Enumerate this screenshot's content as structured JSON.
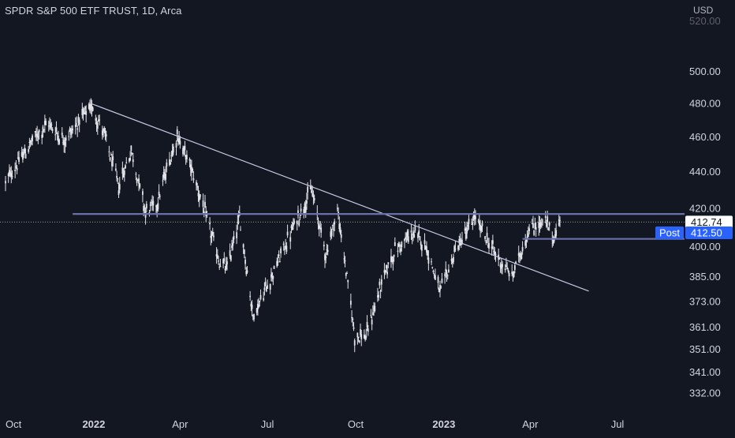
{
  "title": "SPDR S&P 500 ETF TRUST, 1D, Arca",
  "currency": "USD",
  "colors": {
    "background": "#131722",
    "candle": "#e1e3e8",
    "trendline": "#c8c8e6",
    "level": "#6a6fa8",
    "axis_text": "#d1d4dc",
    "price_tag_bg": "#ffffff",
    "price_tag_text": "#131722",
    "post_tag_bg": "#2962ff",
    "post_tag_text": "#ffffff"
  },
  "price_tags": {
    "last": "412.74",
    "post_label": "Post",
    "post": "412.50"
  },
  "chart_data": {
    "type": "line",
    "title": "SPDR S&P 500 ETF TRUST, 1D, Arca",
    "y_axis_labels": [
      "500.00",
      "480.00",
      "460.00",
      "440.00",
      "420.00",
      "400.00",
      "385.00",
      "373.00",
      "361.00",
      "351.00",
      "341.00",
      "332.00"
    ],
    "x_axis_labels": [
      "Oct",
      "2022",
      "Apr",
      "Jul",
      "Oct",
      "2023",
      "Apr",
      "Jul"
    ],
    "ylim": [
      326,
      510
    ],
    "log_scale": true,
    "series": [
      {
        "points": [
          [
            "2021-10-01",
            434
          ],
          [
            "2021-10-15",
            446
          ],
          [
            "2021-11-01",
            460
          ],
          [
            "2021-11-15",
            468
          ],
          [
            "2021-12-01",
            458
          ],
          [
            "2021-12-15",
            468
          ],
          [
            "2021-12-29",
            478
          ],
          [
            "2022-01-10",
            465
          ],
          [
            "2022-01-27",
            432
          ],
          [
            "2022-02-09",
            452
          ],
          [
            "2022-02-24",
            418
          ],
          [
            "2022-03-08",
            423
          ],
          [
            "2022-03-29",
            461
          ],
          [
            "2022-04-14",
            440
          ],
          [
            "2022-04-29",
            414
          ],
          [
            "2022-05-12",
            392
          ],
          [
            "2022-05-20",
            389
          ],
          [
            "2022-06-02",
            415
          ],
          [
            "2022-06-16",
            366
          ],
          [
            "2022-07-08",
            388
          ],
          [
            "2022-07-29",
            411
          ],
          [
            "2022-08-16",
            430
          ],
          [
            "2022-08-31",
            396
          ],
          [
            "2022-09-12",
            419
          ],
          [
            "2022-09-30",
            357
          ],
          [
            "2022-10-12",
            357
          ],
          [
            "2022-10-31",
            386
          ],
          [
            "2022-11-11",
            398
          ],
          [
            "2022-11-30",
            407
          ],
          [
            "2022-12-13",
            401
          ],
          [
            "2022-12-28",
            377
          ],
          [
            "2023-01-13",
            398
          ],
          [
            "2023-02-02",
            415
          ],
          [
            "2023-02-24",
            396
          ],
          [
            "2023-03-13",
            385
          ],
          [
            "2023-03-31",
            409
          ],
          [
            "2023-04-17",
            413
          ],
          [
            "2023-04-25",
            404
          ],
          [
            "2023-05-02",
            412.5
          ]
        ]
      }
    ],
    "annotations": {
      "trendline": [
        [
          "2021-12-29",
          480
        ],
        [
          "2023-06-01",
          378
        ]
      ],
      "resistance": {
        "value": 417,
        "from": "2021-12-10",
        "to": "2023-07-15"
      },
      "support": {
        "value": 404,
        "from": "2023-03-24",
        "to": "2023-07-15"
      },
      "last_price": 412.74,
      "post_price": 412.5
    }
  }
}
